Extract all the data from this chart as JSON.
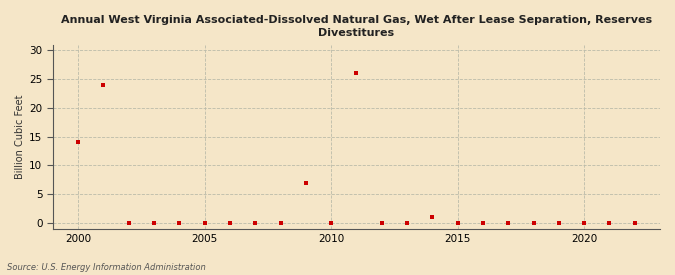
{
  "title": "Annual West Virginia Associated-Dissolved Natural Gas, Wet After Lease Separation, Reserves\nDivestitures",
  "ylabel": "Billion Cubic Feet",
  "source": "Source: U.S. Energy Information Administration",
  "background_color": "#f5e6c8",
  "plot_background_color": "#f5e6c8",
  "marker_color": "#cc0000",
  "grid_color": "#bbbbaa",
  "xlim": [
    1999,
    2023
  ],
  "ylim": [
    -1,
    31
  ],
  "yticks": [
    0,
    5,
    10,
    15,
    20,
    25,
    30
  ],
  "xticks": [
    2000,
    2005,
    2010,
    2015,
    2020
  ],
  "years": [
    2000,
    2001,
    2002,
    2003,
    2004,
    2005,
    2006,
    2007,
    2008,
    2009,
    2010,
    2011,
    2012,
    2013,
    2014,
    2015,
    2016,
    2017,
    2018,
    2019,
    2020,
    2021,
    2022
  ],
  "values": [
    14.0,
    24.0,
    0.0,
    0.0,
    0.0,
    0.0,
    0.0,
    0.0,
    0.0,
    7.0,
    0.0,
    26.0,
    0.0,
    0.0,
    1.0,
    0.0,
    0.0,
    0.0,
    0.0,
    0.0,
    0.0,
    0.0,
    0.0
  ]
}
